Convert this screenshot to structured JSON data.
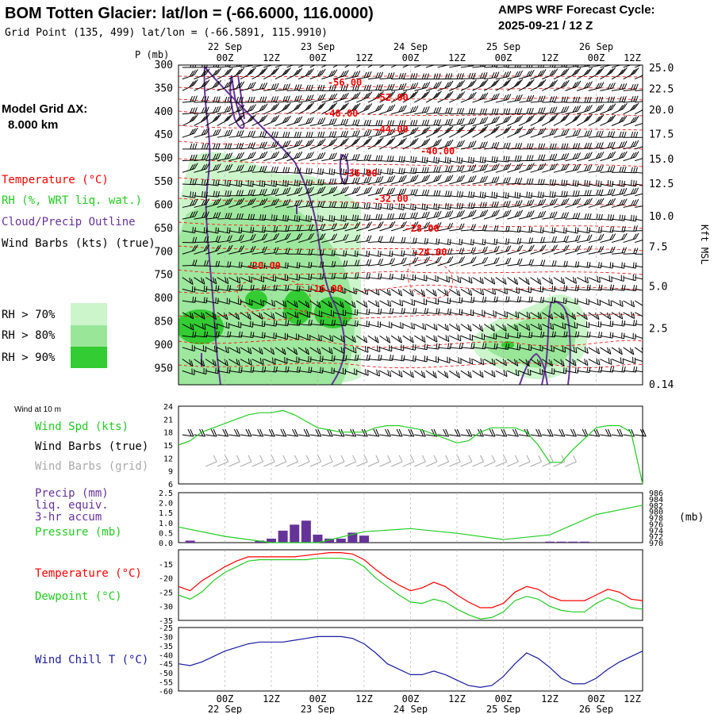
{
  "header": {
    "title": "BOM Totten Glacier:  lat/lon = (-66.6000, 116.0000)",
    "grid_point": "Grid Point (135, 499) lat/lon = (-66.5891, 115.9910)",
    "cycle_label": "AMPS WRF Forecast Cycle:",
    "cycle_value": "2025-09-21 / 12  Z"
  },
  "left_legend": {
    "model_grid_label": "Model Grid ΔX:",
    "model_grid_value": "8.000 km",
    "temperature": "Temperature (°C)",
    "rh": "RH (%, WRT liq. wat.)",
    "cloud": "Cloud/Precip Outline",
    "wind_barbs": "Wind Barbs (kts) (true)",
    "rh_levels": [
      "RH > 70%",
      "RH > 80%",
      "RH > 90%"
    ]
  },
  "colors": {
    "temperature": "#ff0000",
    "rh": "#22cc22",
    "cloud": "#663399",
    "wind_chill": "#1a1aa0",
    "barb_grid": "#aaaaaa",
    "rh70": "#ccf5cc",
    "rh80": "#99e699",
    "rh90": "#33cc33"
  },
  "time_axis": {
    "tick_labels": [
      "00Z",
      "12Z",
      "00Z",
      "12Z",
      "00Z",
      "12Z",
      "00Z",
      "12Z",
      "00Z",
      "12Z"
    ],
    "date_labels": [
      "22 Sep",
      "23 Sep",
      "24 Sep",
      "25 Sep",
      "26 Sep"
    ],
    "range_hours": [
      -12,
      108
    ]
  },
  "chart_data": [
    {
      "type": "heatmap",
      "name": "time-height cross section",
      "ylabel": "P (mb)",
      "y2label": "Kft MSL",
      "yticks": [
        300,
        350,
        400,
        450,
        500,
        550,
        600,
        650,
        700,
        750,
        800,
        850,
        900,
        950
      ],
      "y2ticks": [
        "25.0",
        "22.5",
        "20.0",
        "17.5",
        "15.0",
        "12.5",
        "10.0",
        "7.5",
        "5.0",
        "2.5",
        "0.14"
      ],
      "y2tick_pressures": [
        307,
        352,
        397,
        449,
        502,
        555,
        625,
        690,
        775,
        865,
        985
      ],
      "ylim": [
        985,
        300
      ],
      "isotherm_labels": [
        {
          "text": "-56.00",
          "x": 31,
          "p": 337
        },
        {
          "text": "-52.00",
          "x": 43,
          "p": 370
        },
        {
          "text": "-48.00",
          "x": 30,
          "p": 404
        },
        {
          "text": "-44.00",
          "x": 43,
          "p": 438
        },
        {
          "text": "-40.00",
          "x": 55,
          "p": 484
        },
        {
          "text": "-36.00",
          "x": 35,
          "p": 532
        },
        {
          "text": "-32.00",
          "x": 43,
          "p": 586
        },
        {
          "text": "-28.00",
          "x": 51,
          "p": 650
        },
        {
          "text": "-24.00",
          "x": 53,
          "p": 701
        },
        {
          "text": "-20.00",
          "x": 10,
          "p": 730
        },
        {
          "text": "-16.00",
          "x": 26,
          "p": 779
        }
      ]
    },
    {
      "type": "line",
      "name": "surface wind",
      "title": "Wind at 10 m",
      "legend": [
        "Wind Spd (kts)",
        "Wind Barbs (true)",
        "Wind Barbs (grid)"
      ],
      "yticks": [
        6,
        9,
        12,
        15,
        18,
        21,
        24
      ],
      "ylim": [
        6,
        24
      ],
      "x": [
        -12,
        -9,
        -6,
        -3,
        0,
        3,
        6,
        9,
        12,
        15,
        18,
        21,
        24,
        27,
        30,
        33,
        36,
        39,
        42,
        45,
        48,
        51,
        54,
        57,
        60,
        63,
        66,
        69,
        72,
        75,
        78,
        81,
        84,
        87,
        90,
        93,
        96,
        99,
        102,
        105,
        108
      ],
      "series": [
        {
          "name": "Wind Spd (kts)",
          "values": [
            15,
            16,
            18,
            19,
            20,
            21,
            22,
            22.5,
            22.5,
            23,
            22,
            20.5,
            19,
            18.5,
            18,
            18,
            18,
            19,
            19.5,
            19.5,
            19,
            18.5,
            17.5,
            16.5,
            15.5,
            16,
            18,
            19,
            19,
            19,
            18,
            15,
            11,
            11,
            14,
            16.5,
            19,
            19.5,
            19.5,
            18,
            6
          ]
        }
      ]
    },
    {
      "type": "line",
      "name": "precip and pressure",
      "legend": [
        "Precip (mm)",
        "liq. equiv.",
        "3-hr accum",
        "Pressure (mb)"
      ],
      "yticks_left": [
        "0.0",
        "0.5",
        "1.0",
        "1.5",
        "2.0",
        "2.5"
      ],
      "ylim_left": [
        0,
        2.5
      ],
      "yticks_right": [
        "970",
        "972",
        "974",
        "976",
        "978",
        "980",
        "982",
        "984",
        "986"
      ],
      "ylim_right": [
        970,
        986
      ],
      "y2unit": "(mb)",
      "precip_x": [
        -12,
        -9,
        -6,
        -3,
        0,
        3,
        6,
        9,
        12,
        15,
        18,
        21,
        24,
        27,
        30,
        33,
        36,
        39,
        42,
        45,
        48,
        51,
        54,
        57,
        60,
        63,
        66,
        69,
        72,
        75,
        78,
        81,
        84,
        87,
        90,
        93,
        96,
        99,
        102,
        105,
        108
      ],
      "precip": [
        0,
        0.1,
        0,
        0,
        0,
        0,
        0,
        0.1,
        0.2,
        0.6,
        0.9,
        1.1,
        0.4,
        0.2,
        0.2,
        0.5,
        0.35,
        0,
        0,
        0,
        0,
        0,
        0,
        0,
        0,
        0,
        0,
        0,
        0,
        0,
        0,
        0,
        0.05,
        0.05,
        0.05,
        0.05,
        0,
        0,
        0,
        0,
        0
      ],
      "pressure_x": [
        -12,
        0,
        12,
        24,
        36,
        48,
        60,
        72,
        84,
        96,
        108
      ],
      "pressure": [
        975,
        972,
        970,
        970,
        973.5,
        974.5,
        973,
        971,
        972.5,
        979,
        982
      ]
    },
    {
      "type": "line",
      "name": "surface temperature",
      "legend": [
        "Temperature (°C)",
        "Dewpoint (°C)"
      ],
      "yticks": [
        -35,
        -30,
        -25,
        -20,
        -15
      ],
      "ylim": [
        -35,
        -10
      ],
      "x": [
        -12,
        -9,
        -6,
        -3,
        0,
        3,
        6,
        9,
        12,
        15,
        18,
        21,
        24,
        27,
        30,
        33,
        36,
        39,
        42,
        45,
        48,
        51,
        54,
        57,
        60,
        63,
        66,
        69,
        72,
        75,
        78,
        81,
        84,
        87,
        90,
        93,
        96,
        99,
        102,
        105,
        108
      ],
      "series": [
        {
          "name": "Temperature (°C)",
          "values": [
            -23,
            -24.5,
            -21,
            -18.5,
            -16,
            -14,
            -12.5,
            -12.5,
            -12.5,
            -12.5,
            -12.5,
            -12,
            -11.5,
            -11,
            -11,
            -11.5,
            -13.5,
            -17,
            -20,
            -22.5,
            -24.5,
            -23.5,
            -21.5,
            -23,
            -26,
            -28.5,
            -30.5,
            -30.5,
            -29,
            -25,
            -23,
            -24,
            -26.5,
            -28,
            -28,
            -28,
            -26,
            -24,
            -25,
            -27.5,
            -28
          ]
        },
        {
          "name": "Dewpoint (°C)",
          "values": [
            -26,
            -27.5,
            -25,
            -21,
            -18,
            -16,
            -14,
            -13.5,
            -13.5,
            -13.5,
            -13.5,
            -13.5,
            -13,
            -13,
            -13,
            -13.5,
            -16,
            -20,
            -23,
            -26,
            -28.5,
            -29,
            -27.5,
            -28.5,
            -31,
            -33,
            -34.5,
            -34,
            -32,
            -28,
            -26.5,
            -27.5,
            -30,
            -31.5,
            -32,
            -32,
            -29,
            -27,
            -28.5,
            -30.5,
            -31
          ]
        }
      ]
    },
    {
      "type": "line",
      "name": "wind chill",
      "legend": [
        "Wind Chill T (°C)"
      ],
      "yticks": [
        -60,
        -55,
        -50,
        -45,
        -40,
        -35,
        -30,
        -25
      ],
      "ylim": [
        -60,
        -25
      ],
      "x": [
        -12,
        -9,
        -6,
        -3,
        0,
        3,
        6,
        9,
        12,
        15,
        18,
        21,
        24,
        27,
        30,
        33,
        36,
        39,
        42,
        45,
        48,
        51,
        54,
        57,
        60,
        63,
        66,
        69,
        72,
        75,
        78,
        81,
        84,
        87,
        90,
        93,
        96,
        99,
        102,
        105,
        108
      ],
      "series": [
        {
          "name": "Wind Chill T (°C)",
          "values": [
            -45,
            -46,
            -44,
            -41,
            -38,
            -36,
            -34,
            -33,
            -33,
            -33,
            -32,
            -31,
            -30,
            -30,
            -30,
            -31,
            -34,
            -39,
            -45,
            -48,
            -51,
            -51,
            -49,
            -51,
            -54,
            -57,
            -58,
            -57,
            -52,
            -45,
            -39,
            -42,
            -47,
            -53,
            -56,
            -56,
            -53,
            -48,
            -44,
            -41,
            -38
          ]
        }
      ]
    }
  ]
}
